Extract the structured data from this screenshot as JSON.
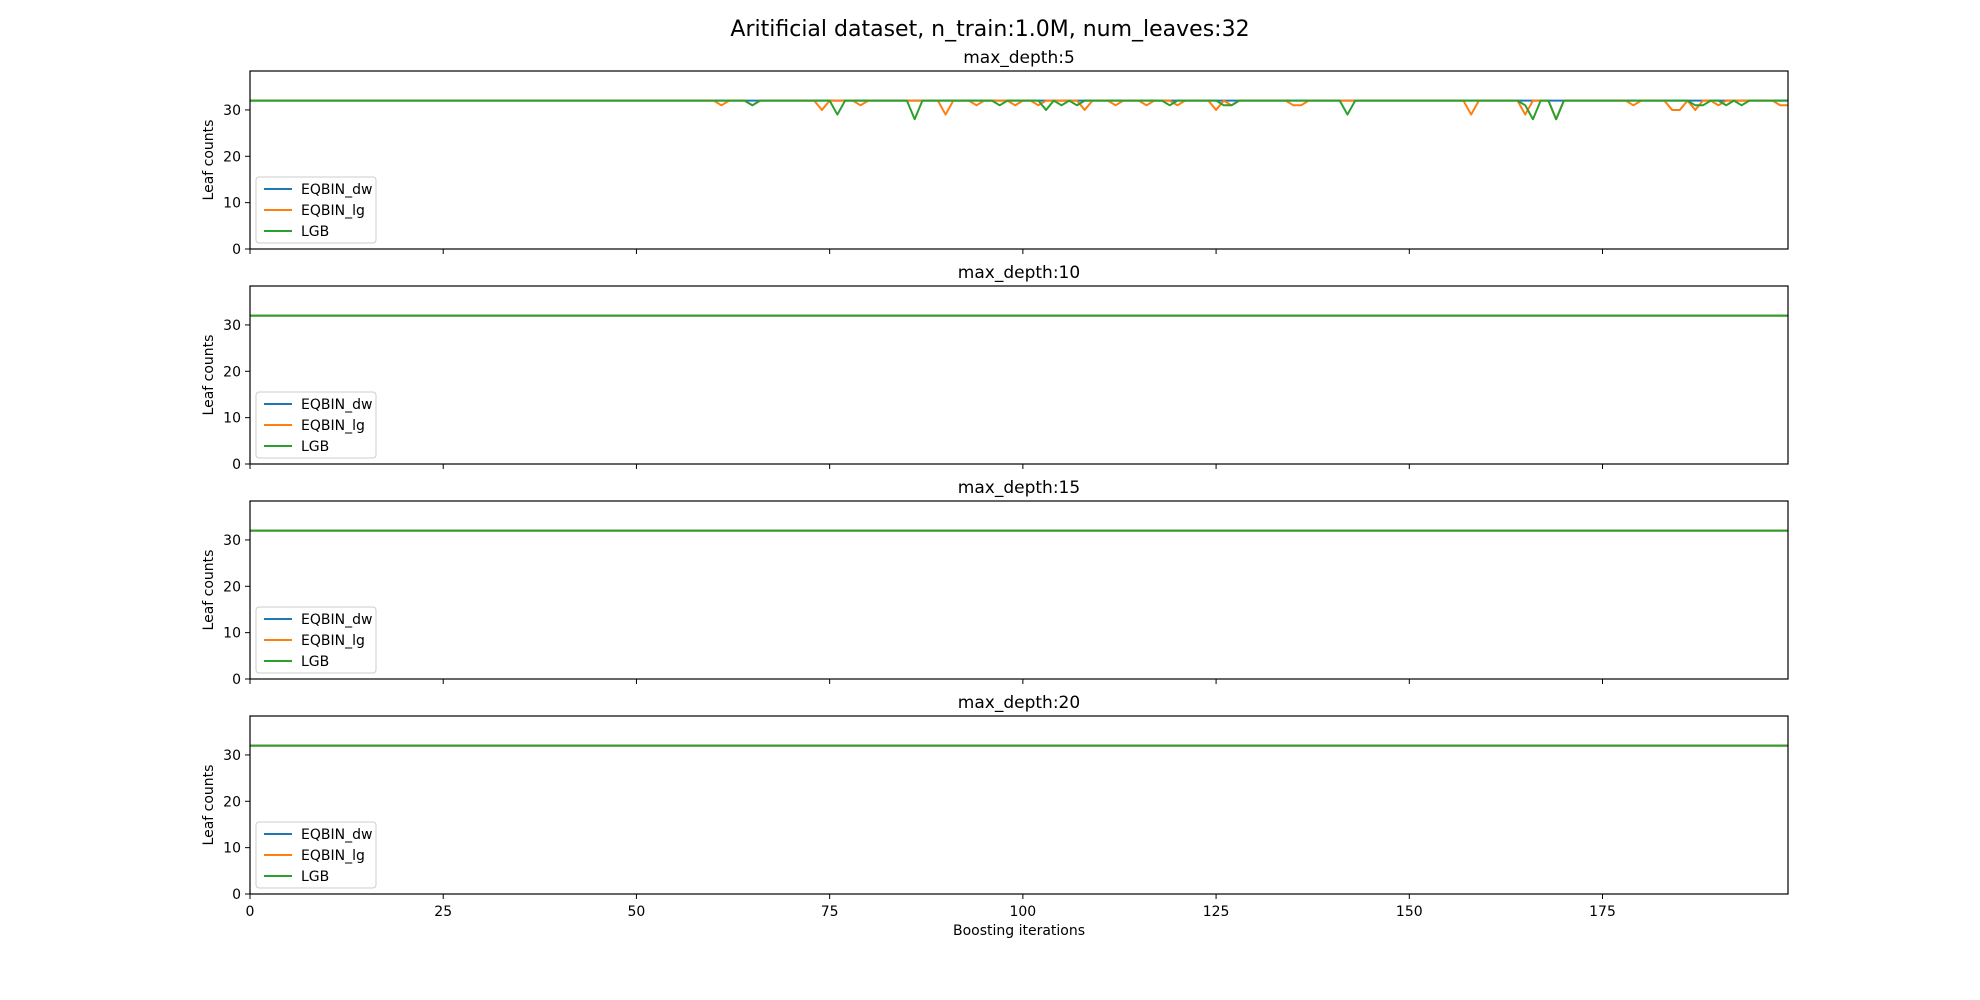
{
  "figure": {
    "suptitle": "Aritificial dataset, n_train:1.0M, num_leaves:32",
    "xlabel": "Boosting iterations"
  },
  "colors": {
    "EQBIN_dw": "#1f77b4",
    "EQBIN_lg": "#ff7f0e",
    "LGB": "#2ca02c"
  },
  "chart_data": [
    {
      "type": "line",
      "title": "max_depth:5",
      "ylabel": "Leaf counts",
      "xlabel": "",
      "xlim": [
        0,
        199
      ],
      "ylim": [
        0,
        38.4
      ],
      "xticks": [
        0,
        25,
        50,
        75,
        100,
        125,
        150,
        175
      ],
      "yticks": [
        0,
        10,
        20,
        30
      ],
      "legend": "lower-left",
      "grid": false,
      "series": [
        {
          "name": "EQBIN_dw",
          "default": 32,
          "overrides": {}
        },
        {
          "name": "EQBIN_lg",
          "default": 32,
          "overrides": {
            "61": 31,
            "65": 31,
            "74": 30,
            "76": 32,
            "79": 31,
            "86": 32,
            "90": 29,
            "94": 31,
            "97": 32,
            "99": 31,
            "102": 31,
            "104": 32,
            "108": 30,
            "112": 31,
            "116": 31,
            "120": 31,
            "125": 30,
            "127": 31,
            "135": 31,
            "136": 31,
            "143": 32,
            "158": 29,
            "165": 29,
            "166": 32,
            "168": 32,
            "169": 28,
            "179": 31,
            "181": 32,
            "184": 30,
            "185": 30,
            "187": 30,
            "190": 31,
            "192": 32,
            "194": 32,
            "198": 31,
            "199": 31
          }
        },
        {
          "name": "LGB",
          "default": 32,
          "overrides": {
            "65": 31,
            "76": 29,
            "86": 28,
            "97": 31,
            "103": 30,
            "105": 31,
            "107": 31,
            "119": 31,
            "126": 31,
            "127": 31,
            "142": 29,
            "165": 31,
            "166": 28,
            "169": 28,
            "187": 31,
            "188": 31,
            "189": 32,
            "190": 32,
            "191": 31,
            "193": 31
          }
        }
      ]
    },
    {
      "type": "line",
      "title": "max_depth:10",
      "ylabel": "Leaf counts",
      "xlabel": "",
      "xlim": [
        0,
        199
      ],
      "ylim": [
        0,
        38.4
      ],
      "xticks": [
        0,
        25,
        50,
        75,
        100,
        125,
        150,
        175
      ],
      "yticks": [
        0,
        10,
        20,
        30
      ],
      "legend": "lower-left",
      "grid": false,
      "series": [
        {
          "name": "EQBIN_dw",
          "default": 32,
          "overrides": {}
        },
        {
          "name": "EQBIN_lg",
          "default": 32,
          "overrides": {}
        },
        {
          "name": "LGB",
          "default": 32,
          "overrides": {}
        }
      ]
    },
    {
      "type": "line",
      "title": "max_depth:15",
      "ylabel": "Leaf counts",
      "xlabel": "",
      "xlim": [
        0,
        199
      ],
      "ylim": [
        0,
        38.4
      ],
      "xticks": [
        0,
        25,
        50,
        75,
        100,
        125,
        150,
        175
      ],
      "yticks": [
        0,
        10,
        20,
        30
      ],
      "legend": "lower-left",
      "grid": false,
      "series": [
        {
          "name": "EQBIN_dw",
          "default": 32,
          "overrides": {}
        },
        {
          "name": "EQBIN_lg",
          "default": 32,
          "overrides": {}
        },
        {
          "name": "LGB",
          "default": 32,
          "overrides": {}
        }
      ]
    },
    {
      "type": "line",
      "title": "max_depth:20",
      "ylabel": "Leaf counts",
      "xlabel": "Boosting iterations",
      "xlim": [
        0,
        199
      ],
      "ylim": [
        0,
        38.4
      ],
      "xticks": [
        0,
        25,
        50,
        75,
        100,
        125,
        150,
        175
      ],
      "yticks": [
        0,
        10,
        20,
        30
      ],
      "legend": "lower-left",
      "grid": false,
      "series": [
        {
          "name": "EQBIN_dw",
          "default": 32,
          "overrides": {}
        },
        {
          "name": "EQBIN_lg",
          "default": 32,
          "overrides": {}
        },
        {
          "name": "LGB",
          "default": 32,
          "overrides": {}
        }
      ]
    }
  ]
}
